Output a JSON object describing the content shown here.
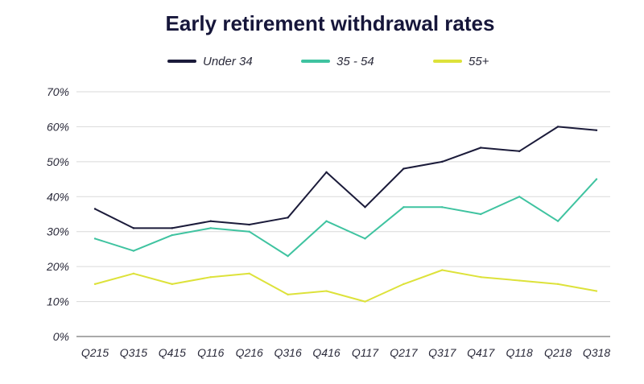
{
  "chart_data": {
    "type": "line",
    "title": "Early retirement withdrawal rates",
    "xlabel": "",
    "ylabel": "",
    "categories": [
      "Q215",
      "Q315",
      "Q415",
      "Q116",
      "Q216",
      "Q316",
      "Q416",
      "Q117",
      "Q217",
      "Q317",
      "Q417",
      "Q118",
      "Q218",
      "Q318"
    ],
    "ylim": [
      0,
      70
    ],
    "yticks": [
      0,
      10,
      20,
      30,
      40,
      50,
      60,
      70
    ],
    "ytick_labels": [
      "0%",
      "10%",
      "20%",
      "30%",
      "40%",
      "50%",
      "60%",
      "70%"
    ],
    "grid": true,
    "legend_position": "top-center",
    "series": [
      {
        "name": "Under 34",
        "color": "#1b1b3a",
        "values": [
          36.5,
          31,
          31,
          33,
          32,
          34,
          47,
          37,
          48,
          50,
          54,
          53,
          60,
          59
        ]
      },
      {
        "name": "35 - 54",
        "color": "#3fc3a0",
        "values": [
          28,
          24.5,
          29,
          31,
          30,
          23,
          33,
          28,
          37,
          37,
          35,
          40,
          33,
          45
        ]
      },
      {
        "name": "55+",
        "color": "#dde23a",
        "values": [
          15,
          18,
          15,
          17,
          18,
          12,
          13,
          10,
          15,
          19,
          17,
          16,
          15,
          13
        ]
      }
    ]
  }
}
